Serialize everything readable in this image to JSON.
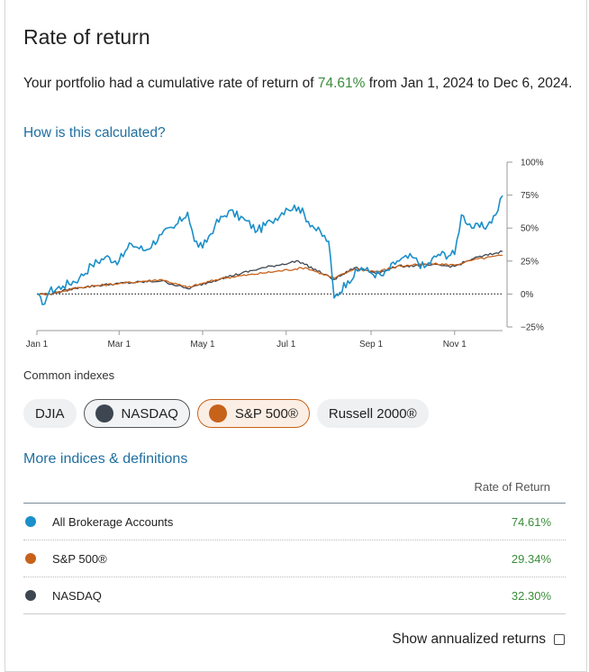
{
  "header": {
    "title": "Rate of return"
  },
  "summary": {
    "prefix": "Your portfolio had a cumulative rate of return of ",
    "rate": "74.61%",
    "suffix": " from Jan 1, 2024 to Dec 6, 2024."
  },
  "calc_link": "How is this calculated?",
  "chart_data": {
    "type": "line",
    "x_ticks": [
      "Jan 1",
      "Mar 1",
      "May 1",
      "Jul 1",
      "Sep 1",
      "Nov 1"
    ],
    "y_ticks": [
      "100%",
      "75%",
      "50%",
      "25%",
      "0%",
      "-25%"
    ],
    "ylim": [
      -25,
      100
    ],
    "x_range": [
      "2024-01-01",
      "2024-12-06"
    ],
    "series": [
      {
        "name": "All Brokerage Accounts",
        "color": "#1a8fc9",
        "points": [
          [
            "2024-01-01",
            0
          ],
          [
            "2024-01-05",
            -8
          ],
          [
            "2024-01-10",
            2
          ],
          [
            "2024-01-20",
            6
          ],
          [
            "2024-02-01",
            12
          ],
          [
            "2024-02-10",
            22
          ],
          [
            "2024-02-20",
            28
          ],
          [
            "2024-03-01",
            25
          ],
          [
            "2024-03-10",
            38
          ],
          [
            "2024-03-20",
            33
          ],
          [
            "2024-04-01",
            45
          ],
          [
            "2024-04-10",
            50
          ],
          [
            "2024-04-20",
            62
          ],
          [
            "2024-04-25",
            40
          ],
          [
            "2024-05-01",
            35
          ],
          [
            "2024-05-10",
            52
          ],
          [
            "2024-05-20",
            63
          ],
          [
            "2024-06-01",
            56
          ],
          [
            "2024-06-10",
            48
          ],
          [
            "2024-06-20",
            55
          ],
          [
            "2024-07-01",
            65
          ],
          [
            "2024-07-10",
            66
          ],
          [
            "2024-07-20",
            52
          ],
          [
            "2024-08-01",
            40
          ],
          [
            "2024-08-05",
            -3
          ],
          [
            "2024-08-15",
            10
          ],
          [
            "2024-08-25",
            20
          ],
          [
            "2024-09-01",
            16
          ],
          [
            "2024-09-10",
            14
          ],
          [
            "2024-09-20",
            25
          ],
          [
            "2024-10-01",
            28
          ],
          [
            "2024-10-10",
            20
          ],
          [
            "2024-10-20",
            30
          ],
          [
            "2024-11-01",
            30
          ],
          [
            "2024-11-06",
            60
          ],
          [
            "2024-11-15",
            50
          ],
          [
            "2024-11-25",
            52
          ],
          [
            "2024-12-01",
            60
          ],
          [
            "2024-12-06",
            74.61
          ]
        ]
      },
      {
        "name": "S&P 500®",
        "color": "#c7621b",
        "points": [
          [
            "2024-01-01",
            0
          ],
          [
            "2024-01-10",
            0
          ],
          [
            "2024-02-01",
            5
          ],
          [
            "2024-03-01",
            8
          ],
          [
            "2024-04-01",
            11
          ],
          [
            "2024-04-20",
            5
          ],
          [
            "2024-05-15",
            12
          ],
          [
            "2024-06-15",
            16
          ],
          [
            "2024-07-15",
            20
          ],
          [
            "2024-08-05",
            12
          ],
          [
            "2024-08-20",
            19
          ],
          [
            "2024-09-06",
            17
          ],
          [
            "2024-09-20",
            21
          ],
          [
            "2024-10-15",
            23
          ],
          [
            "2024-11-01",
            22
          ],
          [
            "2024-11-15",
            26
          ],
          [
            "2024-12-06",
            29.34
          ]
        ]
      },
      {
        "name": "NASDAQ",
        "color": "#3d4651",
        "points": [
          [
            "2024-01-01",
            0
          ],
          [
            "2024-01-10",
            0
          ],
          [
            "2024-02-01",
            5
          ],
          [
            "2024-03-01",
            8
          ],
          [
            "2024-04-01",
            10
          ],
          [
            "2024-04-20",
            4
          ],
          [
            "2024-05-15",
            12
          ],
          [
            "2024-06-15",
            20
          ],
          [
            "2024-07-10",
            25
          ],
          [
            "2024-08-05",
            11
          ],
          [
            "2024-08-20",
            20
          ],
          [
            "2024-09-06",
            16
          ],
          [
            "2024-09-20",
            21
          ],
          [
            "2024-10-15",
            22
          ],
          [
            "2024-11-01",
            21
          ],
          [
            "2024-11-15",
            27
          ],
          [
            "2024-12-06",
            32.3
          ]
        ]
      }
    ]
  },
  "indexes": {
    "label": "Common indexes",
    "chips": [
      {
        "label": "DJIA",
        "selected": false,
        "color": ""
      },
      {
        "label": "NASDAQ",
        "selected": true,
        "color": "#3d4651"
      },
      {
        "label": "S&P 500®",
        "selected": true,
        "color": "#c7621b"
      },
      {
        "label": "Russell 2000®",
        "selected": false,
        "color": ""
      }
    ]
  },
  "more_link": "More indices & definitions",
  "table": {
    "header": "Rate of Return",
    "rows": [
      {
        "name": "All Brokerage Accounts",
        "value": "74.61%",
        "color": "#1a8fc9"
      },
      {
        "name": "S&P 500®",
        "value": "29.34%",
        "color": "#c7621b"
      },
      {
        "name": "NASDAQ",
        "value": "32.30%",
        "color": "#3d4651"
      }
    ]
  },
  "annualized": {
    "label": "Show annualized returns",
    "checked": false
  }
}
